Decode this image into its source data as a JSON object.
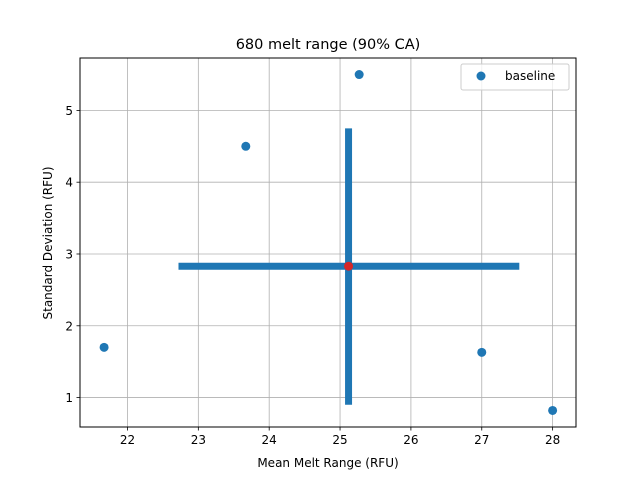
{
  "chart_data": {
    "type": "scatter",
    "title": "680 melt range (90% CA)",
    "xlabel": "Mean Melt Range (RFU)",
    "ylabel": "Standard Deviation (RFU)",
    "xlim": [
      21.33,
      28.33
    ],
    "ylim": [
      0.59,
      5.73
    ],
    "xticks": [
      22,
      23,
      24,
      25,
      26,
      27,
      28
    ],
    "yticks": [
      1,
      2,
      3,
      4,
      5
    ],
    "grid": true,
    "legend_position": "upper right",
    "series": [
      {
        "name": "baseline",
        "color": "#1f77b4",
        "x": [
          25.27,
          23.67,
          21.67,
          27.0,
          28.0
        ],
        "y": [
          5.5,
          4.5,
          1.7,
          1.63,
          0.82
        ]
      }
    ],
    "mean_point": {
      "x": 25.12,
      "y": 2.83,
      "color": "#d62728"
    },
    "error_bars": {
      "color": "#1f77b4",
      "x_range": [
        22.72,
        27.53
      ],
      "y_range": [
        0.9,
        4.75
      ]
    }
  }
}
